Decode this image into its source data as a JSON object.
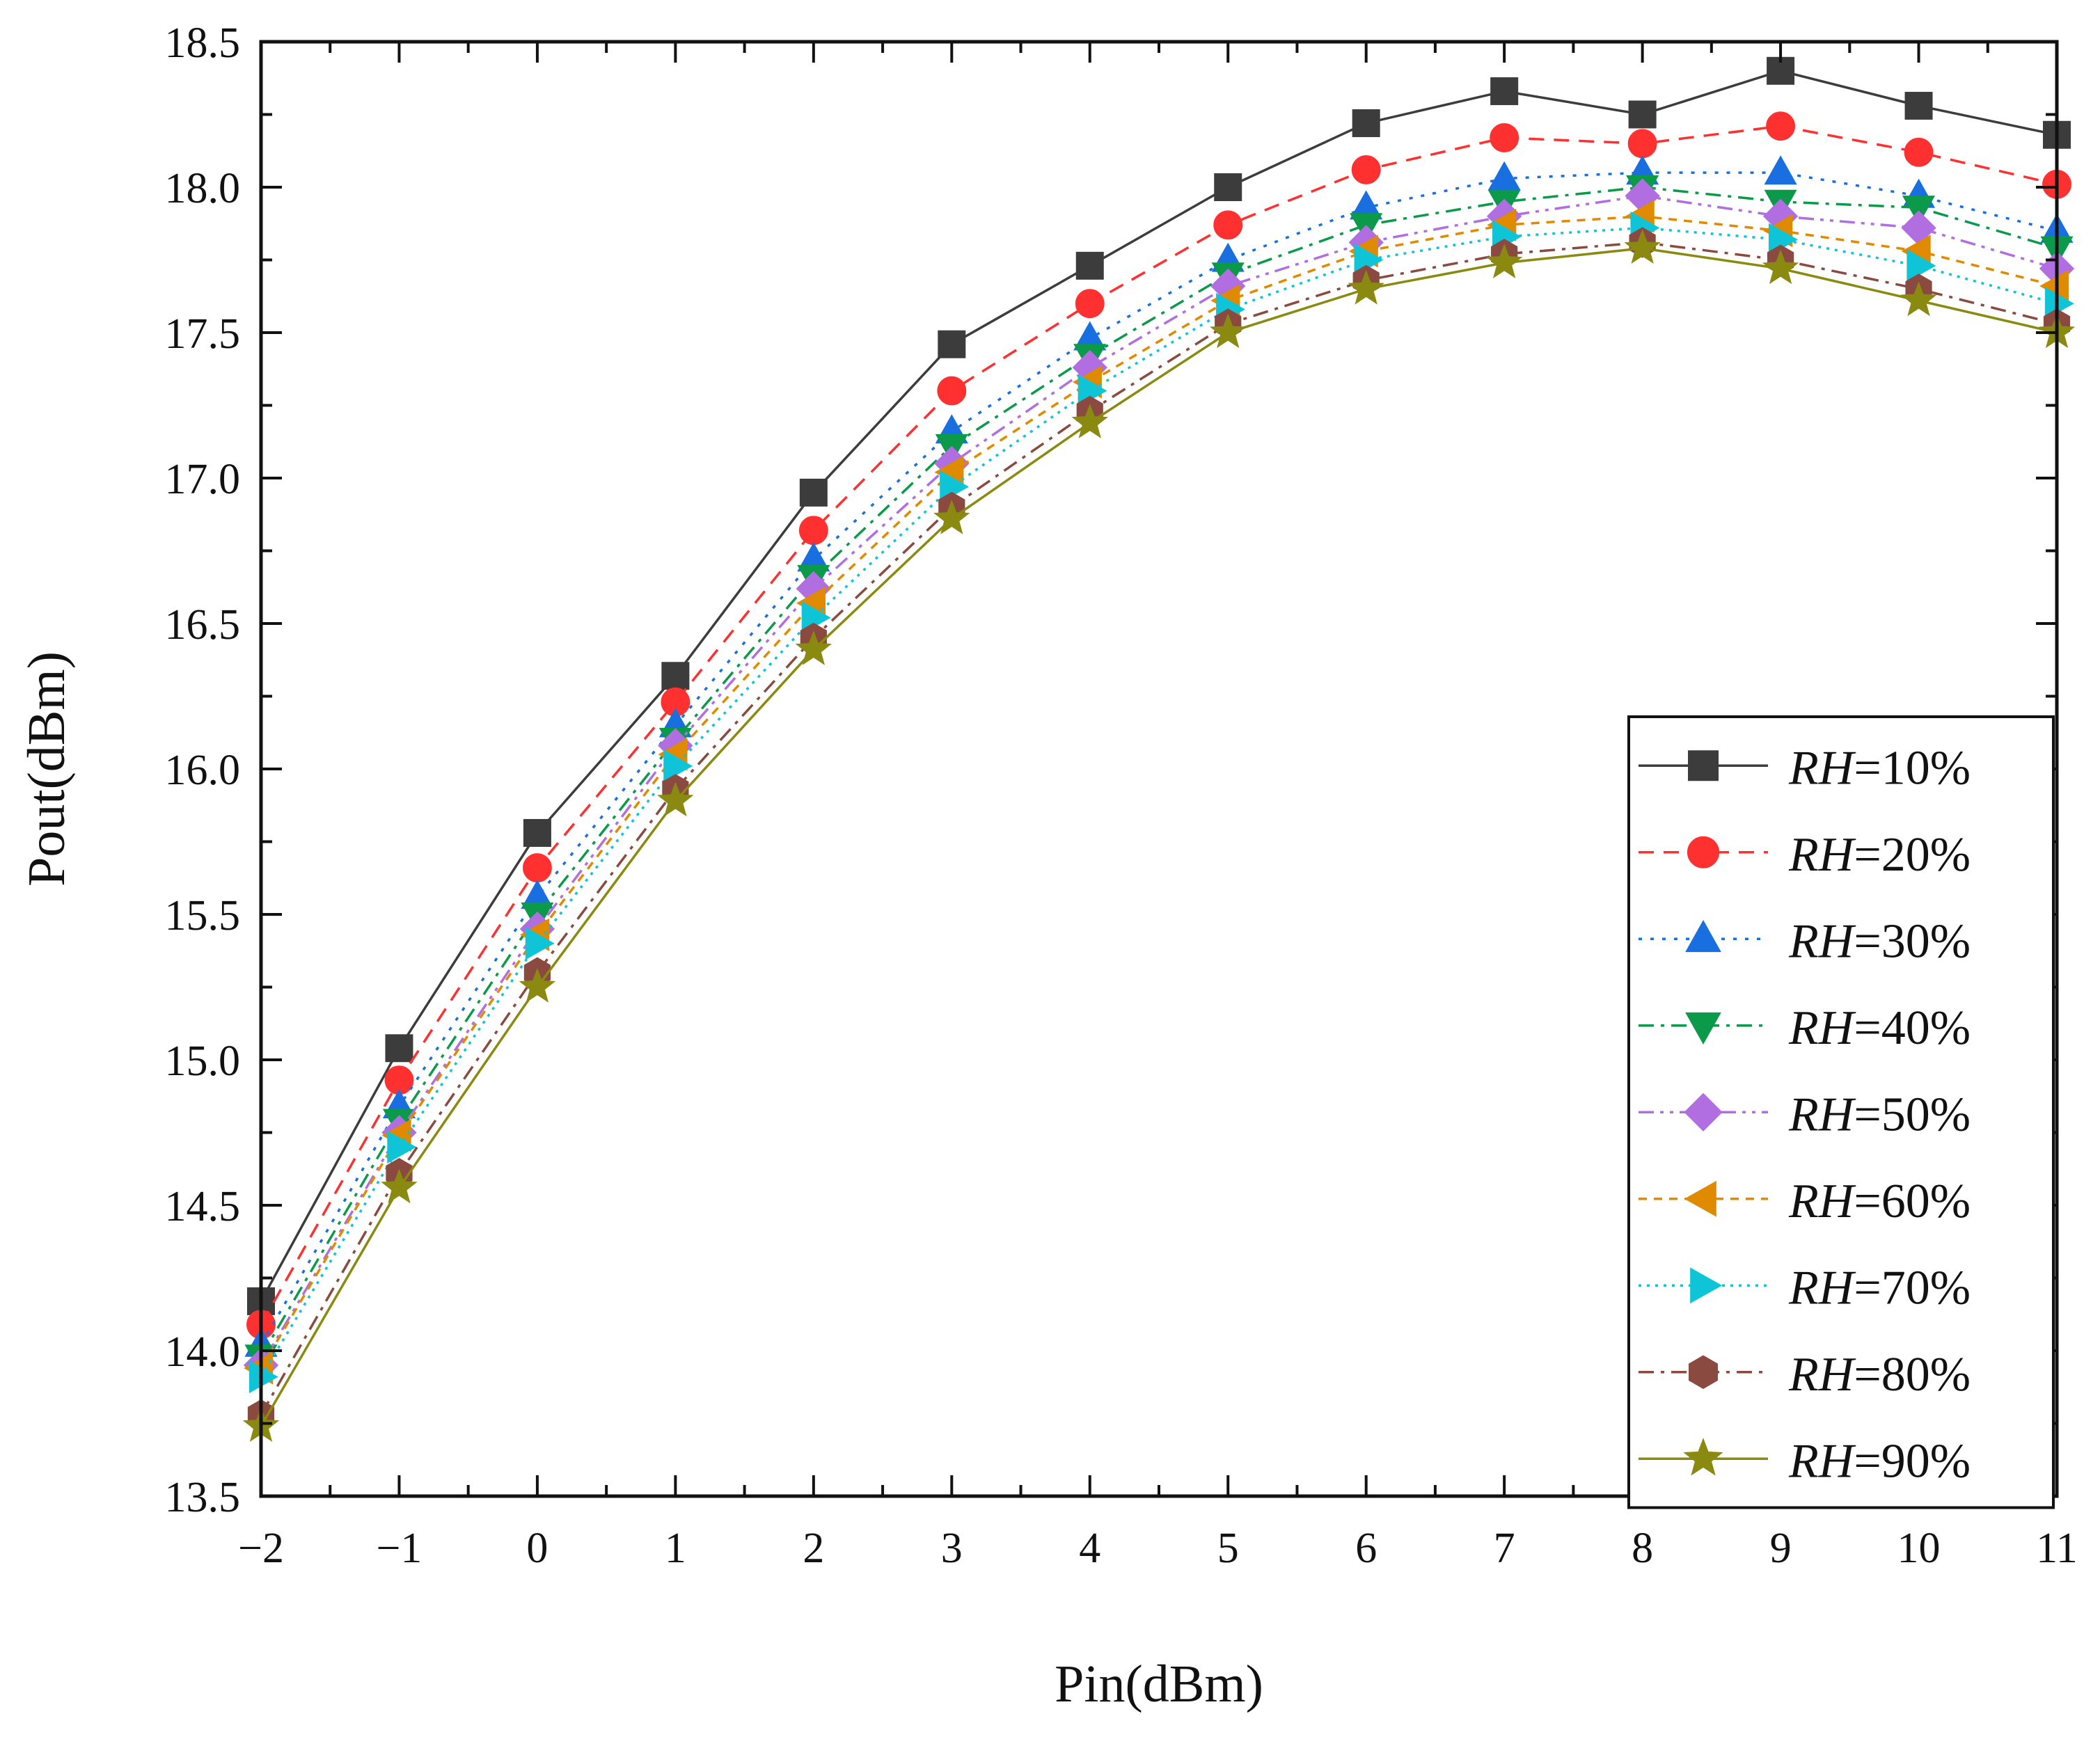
{
  "chart_data": {
    "type": "line",
    "title": "",
    "xlabel": "Pin(dBm)",
    "ylabel": "Pout(dBm)",
    "xlim": [
      -2,
      11
    ],
    "ylim": [
      13.5,
      18.5
    ],
    "x": [
      -2,
      -1,
      0,
      1,
      2,
      3,
      4,
      5,
      6,
      7,
      8,
      9,
      10,
      11
    ],
    "x_tick_labels": [
      "−2",
      "−1",
      "0",
      "1",
      "2",
      "3",
      "4",
      "5",
      "6",
      "7",
      "8",
      "9",
      "10",
      "11"
    ],
    "y_ticks": [
      13.5,
      14.0,
      14.5,
      15.0,
      15.5,
      16.0,
      16.5,
      17.0,
      17.5,
      18.0,
      18.5
    ],
    "y_tick_labels": [
      "13.5",
      "14.0",
      "14.5",
      "15.0",
      "15.5",
      "16.0",
      "16.5",
      "17.0",
      "17.5",
      "18.0",
      "18.5"
    ],
    "grid": false,
    "legend_position": "bottom-right",
    "series": [
      {
        "name": "RH=10%",
        "legend_italic": "RH",
        "legend_rest": "=10%",
        "color": "#3c3c3c",
        "marker": "square",
        "dash": "solid",
        "values": [
          14.17,
          15.04,
          15.78,
          16.32,
          16.95,
          17.46,
          17.73,
          18.0,
          18.22,
          18.33,
          18.25,
          18.4,
          18.28,
          18.18
        ]
      },
      {
        "name": "RH=20%",
        "legend_italic": "RH",
        "legend_rest": "=20%",
        "color": "#ff3030",
        "marker": "circle",
        "dash": "dash",
        "values": [
          14.09,
          14.93,
          15.66,
          16.23,
          16.82,
          17.3,
          17.6,
          17.87,
          18.06,
          18.17,
          18.15,
          18.21,
          18.12,
          18.01
        ]
      },
      {
        "name": "RH=30%",
        "legend_italic": "RH",
        "legend_rest": "=30%",
        "color": "#1a6fe0",
        "marker": "triangle-up",
        "dash": "dot",
        "values": [
          14.02,
          14.84,
          15.56,
          16.15,
          16.72,
          17.16,
          17.48,
          17.75,
          17.93,
          18.03,
          18.05,
          18.05,
          17.97,
          17.85
        ]
      },
      {
        "name": "RH=40%",
        "legend_italic": "RH",
        "legend_rest": "=40%",
        "color": "#0a9a4a",
        "marker": "triangle-down",
        "dash": "dashdot",
        "values": [
          13.98,
          14.79,
          15.5,
          16.1,
          16.66,
          17.11,
          17.42,
          17.7,
          17.87,
          17.95,
          18.0,
          17.95,
          17.93,
          17.79
        ]
      },
      {
        "name": "RH=50%",
        "legend_italic": "RH",
        "legend_rest": "=50%",
        "color": "#b06ee0",
        "marker": "diamond",
        "dash": "dashdotdot",
        "values": [
          13.95,
          14.75,
          15.45,
          16.08,
          16.62,
          17.05,
          17.38,
          17.66,
          17.81,
          17.9,
          17.97,
          17.9,
          17.86,
          17.72
        ]
      },
      {
        "name": "RH=60%",
        "legend_italic": "RH",
        "legend_rest": "=60%",
        "color": "#e08a00",
        "marker": "triangle-left",
        "dash": "shortdash",
        "values": [
          13.94,
          14.74,
          15.43,
          16.05,
          16.57,
          17.02,
          17.33,
          17.61,
          17.78,
          17.87,
          17.9,
          17.85,
          17.78,
          17.66
        ]
      },
      {
        "name": "RH=70%",
        "legend_italic": "RH",
        "legend_rest": "=70%",
        "color": "#10c4d8",
        "marker": "triangle-right",
        "dash": "shortdot",
        "values": [
          13.91,
          14.7,
          15.4,
          16.01,
          16.52,
          16.97,
          17.3,
          17.58,
          17.75,
          17.83,
          17.86,
          17.82,
          17.73,
          17.6
        ]
      },
      {
        "name": "RH=80%",
        "legend_italic": "RH",
        "legend_rest": "=80%",
        "color": "#8a4a40",
        "marker": "hexagon",
        "dash": "dashdot",
        "values": [
          13.78,
          14.61,
          15.3,
          15.93,
          16.45,
          16.9,
          17.23,
          17.53,
          17.68,
          17.77,
          17.81,
          17.75,
          17.65,
          17.53
        ]
      },
      {
        "name": "RH=90%",
        "legend_italic": "RH",
        "legend_rest": "=90%",
        "color": "#8a8a10",
        "marker": "star",
        "dash": "solid",
        "values": [
          13.74,
          14.56,
          15.25,
          15.89,
          16.41,
          16.86,
          17.19,
          17.5,
          17.65,
          17.74,
          17.79,
          17.72,
          17.61,
          17.5
        ]
      }
    ]
  }
}
